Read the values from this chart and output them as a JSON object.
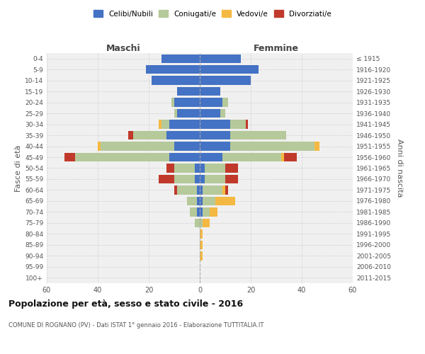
{
  "age_groups": [
    "0-4",
    "5-9",
    "10-14",
    "15-19",
    "20-24",
    "25-29",
    "30-34",
    "35-39",
    "40-44",
    "45-49",
    "50-54",
    "55-59",
    "60-64",
    "65-69",
    "70-74",
    "75-79",
    "80-84",
    "85-89",
    "90-94",
    "95-99",
    "100+"
  ],
  "birth_years": [
    "2011-2015",
    "2006-2010",
    "2001-2005",
    "1996-2000",
    "1991-1995",
    "1986-1990",
    "1981-1985",
    "1976-1980",
    "1971-1975",
    "1966-1970",
    "1961-1965",
    "1956-1960",
    "1951-1955",
    "1946-1950",
    "1941-1945",
    "1936-1940",
    "1931-1935",
    "1926-1930",
    "1921-1925",
    "1916-1920",
    "≤ 1915"
  ],
  "male": {
    "celibi": [
      15,
      21,
      19,
      9,
      10,
      9,
      12,
      13,
      10,
      12,
      2,
      2,
      1,
      1,
      1,
      0,
      0,
      0,
      0,
      0,
      0
    ],
    "coniugati": [
      0,
      0,
      0,
      0,
      1,
      1,
      3,
      13,
      29,
      37,
      8,
      8,
      8,
      4,
      3,
      2,
      0,
      0,
      0,
      0,
      0
    ],
    "vedovi": [
      0,
      0,
      0,
      0,
      0,
      0,
      1,
      0,
      1,
      0,
      0,
      0,
      0,
      0,
      0,
      0,
      0,
      0,
      0,
      0,
      0
    ],
    "divorziati": [
      0,
      0,
      0,
      0,
      0,
      0,
      0,
      2,
      0,
      4,
      3,
      6,
      1,
      0,
      0,
      0,
      0,
      0,
      0,
      0,
      0
    ]
  },
  "female": {
    "nubili": [
      16,
      23,
      20,
      8,
      9,
      8,
      12,
      12,
      12,
      9,
      2,
      2,
      1,
      1,
      1,
      0,
      0,
      0,
      0,
      0,
      0
    ],
    "coniugate": [
      0,
      0,
      0,
      0,
      2,
      2,
      6,
      22,
      33,
      23,
      8,
      8,
      8,
      5,
      3,
      1,
      0,
      0,
      0,
      0,
      0
    ],
    "vedove": [
      0,
      0,
      0,
      0,
      0,
      0,
      0,
      0,
      2,
      1,
      0,
      0,
      1,
      8,
      3,
      3,
      1,
      1,
      1,
      0,
      0
    ],
    "divorziate": [
      0,
      0,
      0,
      0,
      0,
      0,
      1,
      0,
      0,
      5,
      5,
      5,
      1,
      0,
      0,
      0,
      0,
      0,
      0,
      0,
      0
    ]
  },
  "colors": {
    "celibi_nubili": "#4472c4",
    "coniugati": "#b5c99a",
    "vedovi": "#f4b942",
    "divorziati": "#c0392b"
  },
  "xlim": 60,
  "title": "Popolazione per età, sesso e stato civile - 2016",
  "subtitle": "COMUNE DI ROGNANO (PV) - Dati ISTAT 1° gennaio 2016 - Elaborazione TUTTITALIA.IT",
  "ylabel_left": "Fasce di età",
  "ylabel_right": "Anni di nascita",
  "xlabel_left": "Maschi",
  "xlabel_right": "Femmine",
  "bg_color": "#f0f0f0",
  "grid_color": "#cccccc"
}
